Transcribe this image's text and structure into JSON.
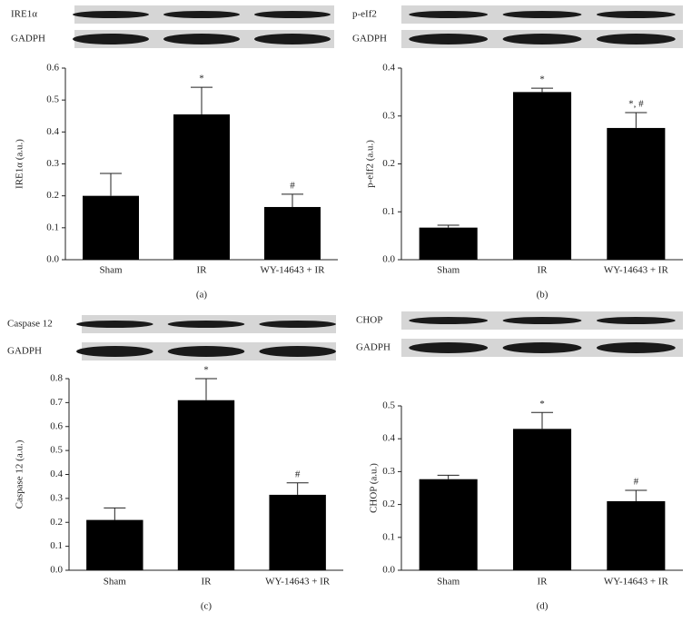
{
  "chart_data": [
    {
      "type": "bar",
      "panel_label": "(a)",
      "blot_labels": [
        "IRE1α",
        "GADPH"
      ],
      "y_label": "IRE1α (a.u.)",
      "categories": [
        "Sham",
        "IR",
        "WY-14643 + IR"
      ],
      "values": [
        0.2,
        0.455,
        0.165
      ],
      "errors": [
        0.07,
        0.085,
        0.04
      ],
      "annotations": [
        null,
        "*",
        "#"
      ],
      "color": "#000000",
      "ylim": [
        0,
        0.6
      ],
      "yticks": [
        {
          "value": 0,
          "label": "0.0"
        },
        0.1,
        0.2,
        0.3,
        0.4,
        0.5,
        0.6
      ]
    },
    {
      "type": "bar",
      "panel_label": "(b)",
      "blot_labels": [
        "p-eIf2",
        "GADPH"
      ],
      "y_label": "p-eIf2 (a.u.)",
      "categories": [
        "Sham",
        "IR",
        "WY-14643 + IR"
      ],
      "values": [
        0.067,
        0.35,
        0.275
      ],
      "errors": [
        0.005,
        0.008,
        0.032
      ],
      "annotations": [
        null,
        "*",
        "*, #"
      ],
      "color": "#000000",
      "ylim": [
        0,
        0.4
      ],
      "yticks": [
        {
          "value": 0,
          "label": "0.0"
        },
        0.1,
        0.2,
        0.3,
        0.4
      ]
    },
    {
      "type": "bar",
      "panel_label": "(c)",
      "blot_labels": [
        "Caspase 12",
        "GADPH"
      ],
      "y_label": "Caspase 12 (a.u.)",
      "categories": [
        "Sham",
        "IR",
        "WY-14643 + IR"
      ],
      "values": [
        0.21,
        0.71,
        0.315
      ],
      "errors": [
        0.05,
        0.09,
        0.05
      ],
      "annotations": [
        null,
        "*",
        "#"
      ],
      "color": "#000000",
      "ylim": [
        0,
        0.8
      ],
      "yticks": [
        {
          "value": 0,
          "label": "0.0"
        },
        0.1,
        0.2,
        0.3,
        0.4,
        0.5,
        0.6,
        0.7,
        0.8
      ]
    },
    {
      "type": "bar",
      "panel_label": "(d)",
      "blot_labels": [
        "CHOP",
        "GADPH"
      ],
      "y_label": "CHOP (a.u.)",
      "categories": [
        "Sham",
        "IR",
        "WY-14643 + IR"
      ],
      "values": [
        0.277,
        0.43,
        0.21
      ],
      "errors": [
        0.012,
        0.05,
        0.033
      ],
      "annotations": [
        null,
        "*",
        "#"
      ],
      "color": "#000000",
      "ylim": [
        0,
        0.5
      ],
      "yticks": [
        {
          "value": 0,
          "label": "0.0"
        },
        0.1,
        0.2,
        0.3,
        0.4,
        0.5
      ]
    }
  ]
}
